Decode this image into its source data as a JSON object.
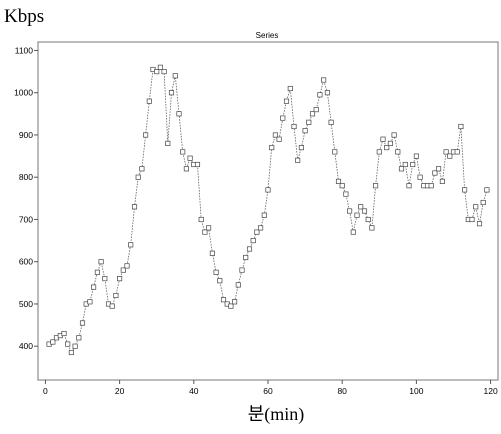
{
  "chart_data": {
    "type": "line",
    "title": "Series",
    "ylabel": "Kbps",
    "xlabel": "분(min)",
    "xlim": [
      -2,
      122
    ],
    "ylim": [
      320,
      1120
    ],
    "x_ticks": [
      0,
      20,
      40,
      60,
      80,
      100,
      120
    ],
    "y_ticks": [
      400,
      500,
      600,
      700,
      800,
      900,
      1000,
      1100
    ],
    "y_tick_labels": [
      "400",
      "500",
      "600",
      "700",
      "800",
      "900",
      "1000",
      "1100"
    ],
    "grid": false,
    "marker": "square",
    "series": [
      {
        "x": [
          1,
          2,
          3,
          4,
          5,
          6,
          7,
          8,
          9,
          10,
          11,
          12,
          13,
          14,
          15,
          16,
          17,
          18,
          19,
          20,
          21,
          22,
          23,
          24,
          25,
          26,
          27,
          28,
          29,
          30,
          31,
          32,
          33,
          34,
          35,
          36,
          37,
          38,
          39,
          40,
          41,
          42,
          43,
          44,
          45,
          46,
          47,
          48,
          49,
          50,
          51,
          52,
          53,
          54,
          55,
          56,
          57,
          58,
          59,
          60,
          61,
          62,
          63,
          64,
          65,
          66,
          67,
          68,
          69,
          70,
          71,
          72,
          73,
          74,
          75,
          76,
          77,
          78,
          79,
          80,
          81,
          82,
          83,
          84,
          85,
          86,
          87,
          88,
          89,
          90,
          91,
          92,
          93,
          94,
          95,
          96,
          97,
          98,
          99,
          100,
          101,
          102,
          103,
          104,
          105,
          106,
          107,
          108,
          109,
          110,
          111,
          112,
          113,
          114,
          115,
          116,
          117,
          118,
          119
        ],
        "values": [
          405,
          410,
          420,
          425,
          430,
          405,
          385,
          400,
          420,
          455,
          500,
          505,
          540,
          575,
          600,
          560,
          500,
          495,
          520,
          560,
          580,
          590,
          640,
          730,
          800,
          820,
          900,
          980,
          1055,
          1050,
          1060,
          1050,
          880,
          1000,
          1040,
          950,
          860,
          820,
          845,
          830,
          830,
          700,
          670,
          680,
          620,
          575,
          555,
          510,
          500,
          495,
          505,
          545,
          580,
          610,
          630,
          650,
          670,
          680,
          710,
          770,
          870,
          900,
          890,
          940,
          980,
          1010,
          920,
          840,
          870,
          910,
          930,
          950,
          960,
          995,
          1030,
          1000,
          930,
          860,
          790,
          780,
          760,
          720,
          670,
          710,
          730,
          720,
          700,
          680,
          780,
          860,
          890,
          870,
          880,
          900,
          860,
          820,
          830,
          780,
          830,
          850,
          800,
          780,
          780,
          780,
          810,
          820,
          790,
          860,
          850,
          860,
          860,
          920,
          770,
          700,
          700,
          730,
          690,
          740,
          770
        ]
      }
    ]
  }
}
